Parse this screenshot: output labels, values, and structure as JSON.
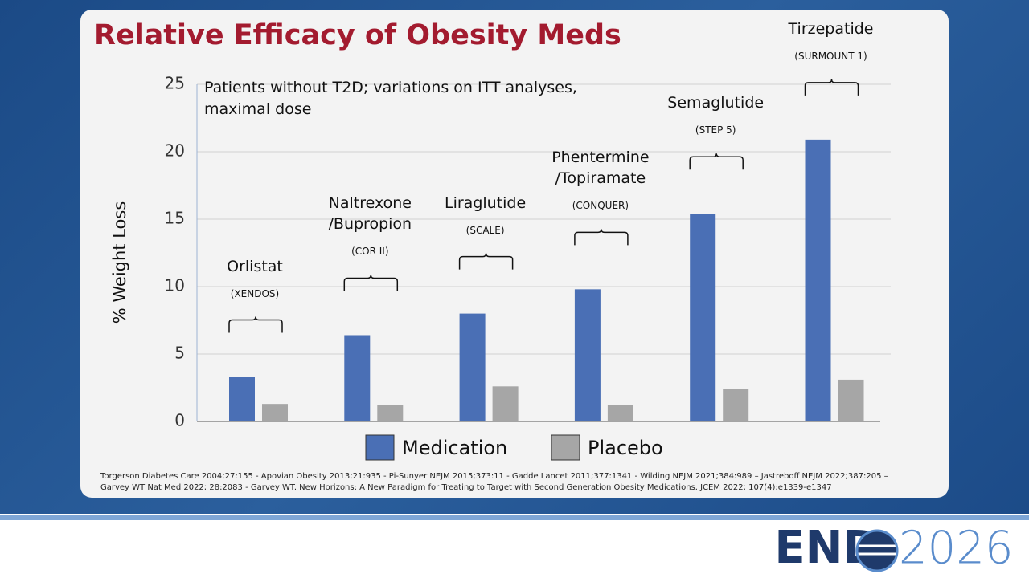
{
  "chart_data": {
    "type": "bar",
    "title": "Relative Efficacy of Obesity Meds",
    "annotation": "Patients without T2D; variations on ITT analyses,\nmaximal dose",
    "ylabel": "% Weight Loss",
    "categories": [
      "Orlistat",
      "Naltrexone\n/Bupropion",
      "Liraglutide",
      "Phentermine\n/Topiramate",
      "Semaglutide",
      "Tirzepatide"
    ],
    "trials": [
      "(XENDOS)",
      "(COR II)",
      "(SCALE)",
      "(CONQUER)",
      "(STEP 5)",
      "(SURMOUNT 1)"
    ],
    "series": [
      {
        "name": "Medication",
        "color": "#4a6fb5",
        "values": [
          3.3,
          6.4,
          8.0,
          9.8,
          15.4,
          20.9
        ]
      },
      {
        "name": "Placebo",
        "color": "#a6a6a6",
        "values": [
          1.3,
          1.2,
          2.6,
          1.2,
          2.4,
          3.1
        ]
      }
    ],
    "ylim": [
      0,
      25
    ],
    "yticks": [
      0,
      5,
      10,
      15,
      20,
      25
    ],
    "grid": true,
    "footnote": "Torgerson Diabetes Care 2004;27:155 - Apovian Obesity 2013;21:935 - Pi-Sunyer NEJM 2015;373:11 - Gadde Lancet 2011;377:1341 - Wilding NEJM 2021;384:989 – Jastreboff NEJM 2022;387:205 – Garvey WT Nat Med 2022; 28:2083 - Garvey WT.  New Horizons: A New Paradigm for Treating to Target with Second Generation Obesity Medications.  JCEM  2022; 107(4):e1339-e1347"
  },
  "logo": {
    "left": "END",
    "right": "2026"
  }
}
